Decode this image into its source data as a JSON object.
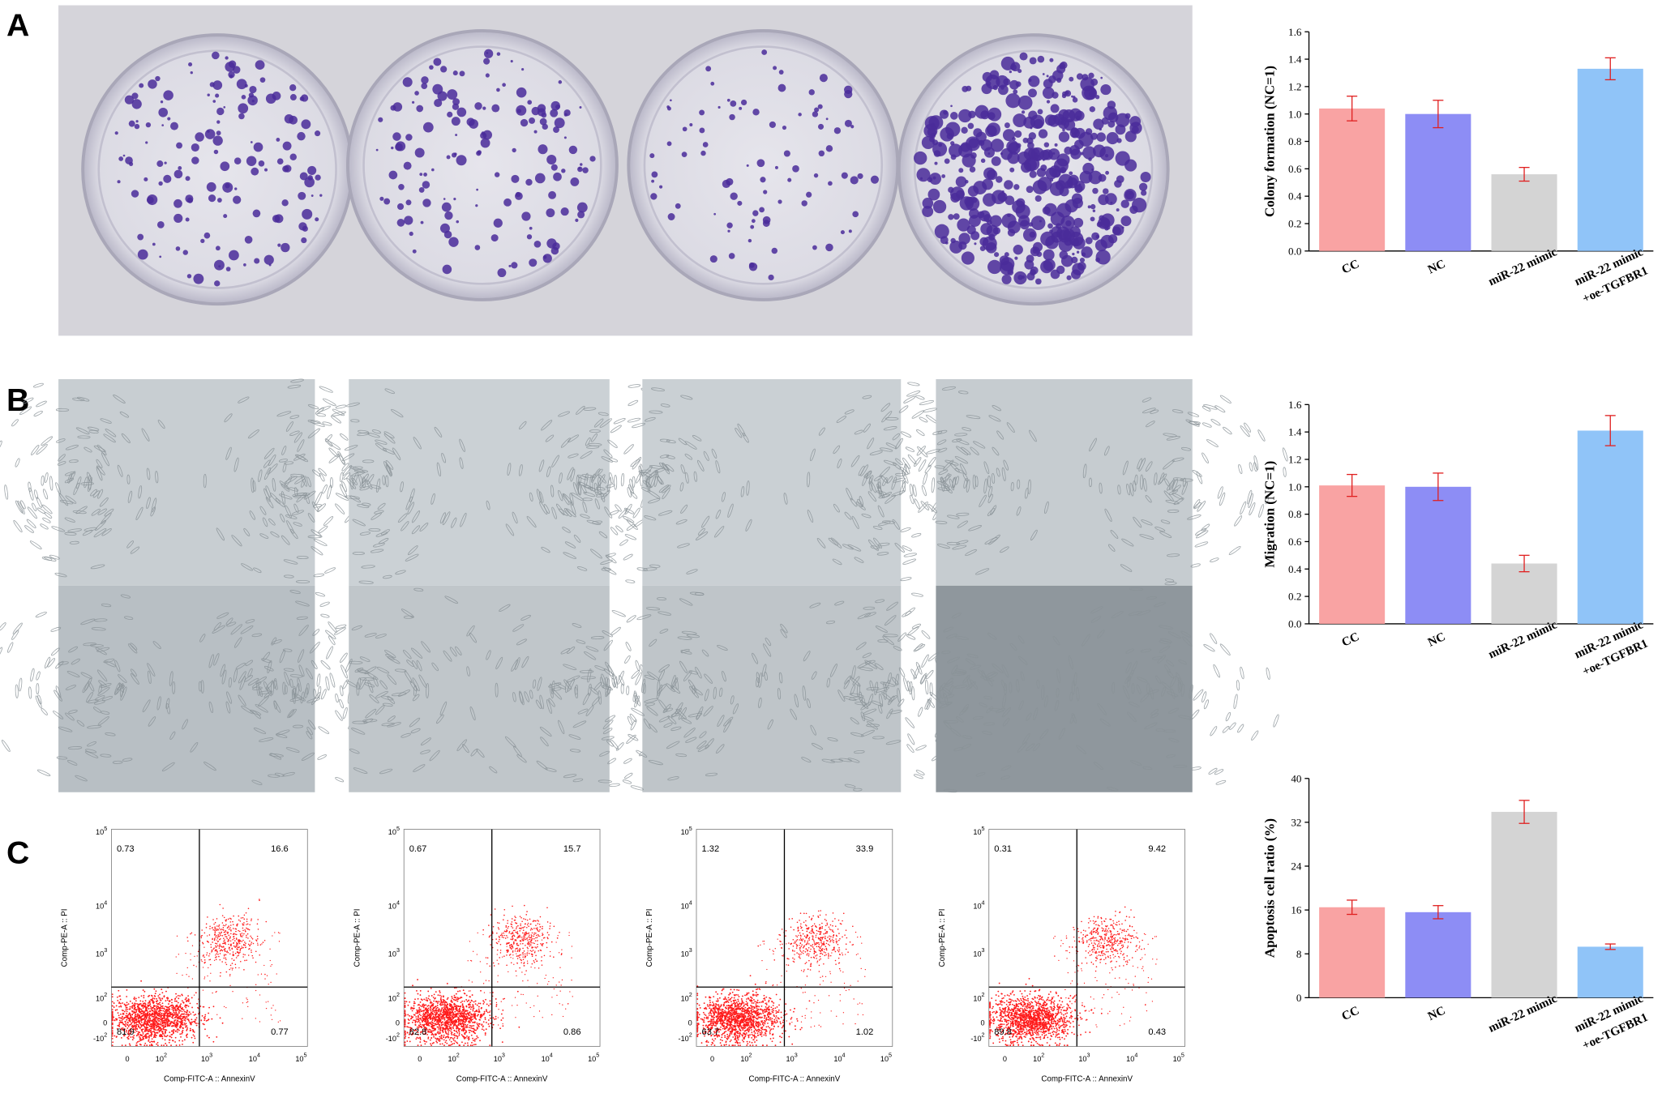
{
  "panels": [
    "A",
    "B",
    "C"
  ],
  "chart_data": [
    {
      "type": "bar",
      "y_label": "Colony formation (NC=1)",
      "categories": [
        [
          "CC"
        ],
        [
          "NC"
        ],
        [
          "miR-22 mimic"
        ],
        [
          "miR-22 mimic",
          "+oe-TGFBR1"
        ]
      ],
      "values": [
        1.04,
        1.0,
        0.56,
        1.33
      ],
      "errors": [
        0.09,
        0.1,
        0.05,
        0.08
      ],
      "colors": [
        "#f9a3a3",
        "#8d8df5",
        "#d4d4d4",
        "#90c4f8"
      ],
      "error_color": "#e02020",
      "ylim": [
        0,
        1.6
      ],
      "yticks": [
        {
          "value": 0,
          "label": "0.0"
        },
        0.2,
        0.4,
        0.6,
        0.8,
        {
          "value": 1,
          "label": "1.0"
        },
        1.2,
        1.4,
        1.6
      ]
    },
    {
      "type": "bar",
      "y_label": "Migration (NC=1)",
      "categories": [
        [
          "CC"
        ],
        [
          "NC"
        ],
        [
          "miR-22 mimic"
        ],
        [
          "miR-22 mimic",
          "+oe-TGFBR1"
        ]
      ],
      "values": [
        1.01,
        1.0,
        0.44,
        1.41
      ],
      "errors": [
        0.08,
        0.1,
        0.06,
        0.11
      ],
      "colors": [
        "#f9a3a3",
        "#8d8df5",
        "#d4d4d4",
        "#90c4f8"
      ],
      "error_color": "#e02020",
      "ylim": [
        0,
        1.6
      ],
      "yticks": [
        {
          "value": 0,
          "label": "0.0"
        },
        0.2,
        0.4,
        0.6,
        0.8,
        {
          "value": 1,
          "label": "1.0"
        },
        1.2,
        1.4,
        1.6
      ]
    },
    {
      "type": "bar",
      "y_label": "Apoptosis cell ratio (%)",
      "categories": [
        [
          "CC"
        ],
        [
          "NC"
        ],
        [
          "miR-22 mimic"
        ],
        [
          "miR-22 mimic",
          "+oe-TGFBR1"
        ]
      ],
      "values": [
        16.5,
        15.6,
        33.9,
        9.3
      ],
      "errors": [
        1.3,
        1.2,
        2.1,
        0.5
      ],
      "colors": [
        "#f9a3a3",
        "#8d8df5",
        "#d4d4d4",
        "#90c4f8"
      ],
      "error_color": "#e02020",
      "ylim": [
        0,
        40
      ],
      "yticks": [
        0,
        8,
        16,
        24,
        32,
        40
      ]
    }
  ],
  "flow": {
    "y_label": "Comp-PE-A :: PI",
    "x_label": "Comp-FITC-A :: AnnexinV",
    "y_ticks": [
      {
        "base": "10",
        "exp": "5"
      },
      {
        "base": "10",
        "exp": "4"
      },
      {
        "base": "10",
        "exp": "3"
      },
      {
        "base": "10",
        "exp": "2"
      },
      {
        "base": "0"
      },
      {
        "base": "-10",
        "exp": "2"
      }
    ],
    "x_ticks": [
      {
        "base": "0"
      },
      {
        "base": "10",
        "exp": "2"
      },
      {
        "base": "10",
        "exp": "3"
      },
      {
        "base": "10",
        "exp": "4"
      },
      {
        "base": "10",
        "exp": "5"
      }
    ],
    "plots": [
      {
        "upper_left": 0.73,
        "upper_right": 16.6,
        "lower_left": 81.9,
        "lower_right": 0.77
      },
      {
        "upper_left": 0.67,
        "upper_right": 15.7,
        "lower_left": 82.8,
        "lower_right": 0.86
      },
      {
        "upper_left": 1.32,
        "upper_right": 33.9,
        "lower_left": 63.7,
        "lower_right": 1.02
      },
      {
        "upper_left": 0.31,
        "upper_right": 9.42,
        "lower_left": 89.8,
        "lower_right": 0.43
      }
    ]
  }
}
